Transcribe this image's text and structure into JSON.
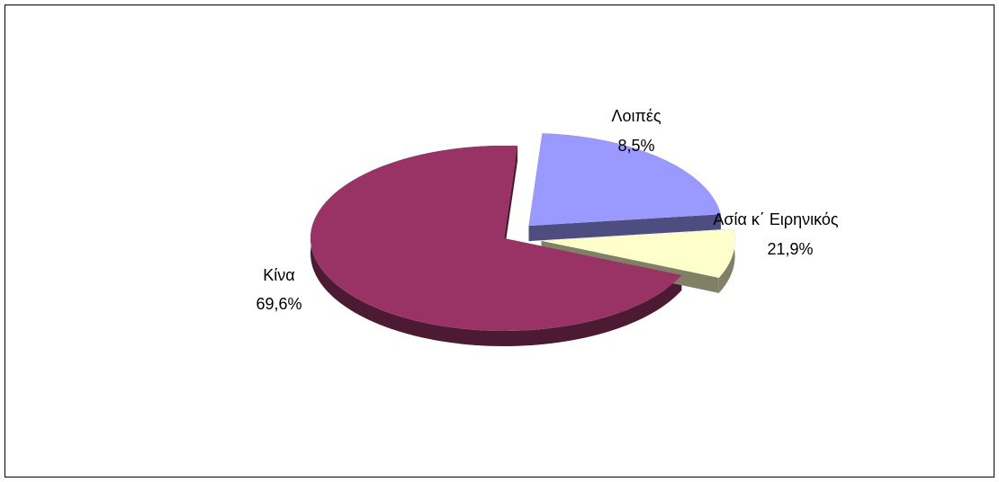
{
  "chart_data": {
    "type": "pie",
    "three_d": true,
    "exploded": true,
    "title": "",
    "legend": "none",
    "slices": [
      {
        "label": "Κίνα",
        "value": 69.6,
        "value_label": "69,6%",
        "color": "#993366",
        "side_color": "#4d1a33"
      },
      {
        "label": "Λοιπές",
        "value": 8.5,
        "value_label": "8,5%",
        "color": "#ffffcc",
        "side_color": "#808066"
      },
      {
        "label": "Ασία κ΄ Ειρηνικός",
        "value": 21.9,
        "value_label": "21,9%",
        "color": "#9999ff",
        "side_color": "#4d4d80"
      }
    ]
  }
}
